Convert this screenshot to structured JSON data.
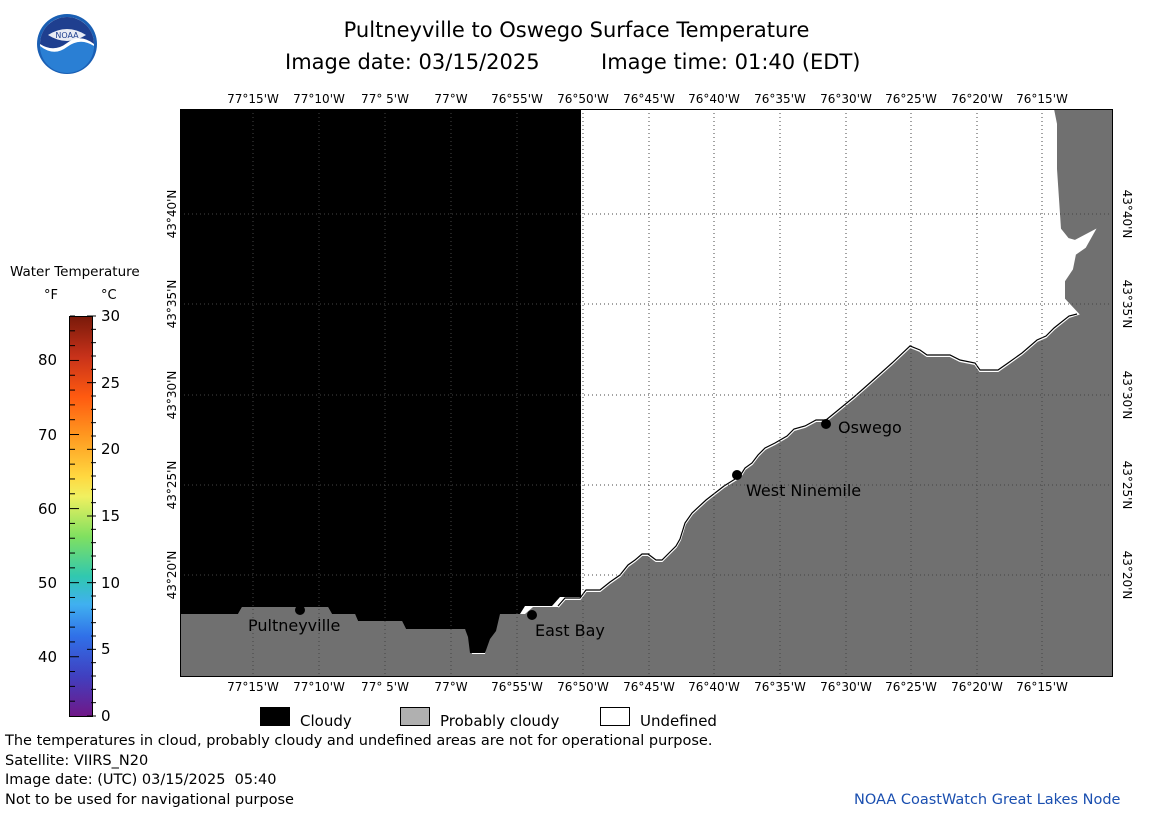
{
  "header": {
    "title": "Pultneyville to Oswego Surface Temperature",
    "date_label": "Image date: 03/15/2025",
    "time_label": "Image time: 01:40 (EDT)"
  },
  "logo": {
    "text": "NOAA",
    "icon": "noaa-logo"
  },
  "colorbar": {
    "title": "Water Temperature",
    "unit_f": "°F",
    "unit_c": "°C",
    "f_ticks": [
      "80",
      "70",
      "60",
      "50",
      "40"
    ],
    "c_ticks": [
      "30",
      "25",
      "20",
      "15",
      "10",
      "5",
      "0"
    ]
  },
  "map": {
    "lon_labels": [
      "77°15'W",
      "77°10'W",
      "77° 5'W",
      "77°W",
      "76°55'W",
      "76°50'W",
      "76°45'W",
      "76°40'W",
      "76°35'W",
      "76°30'W",
      "76°25'W",
      "76°20'W",
      "76°15'W"
    ],
    "lat_labels": [
      "43°40'N",
      "43°35'N",
      "43°30'N",
      "43°25'N",
      "43°20'N"
    ],
    "places": [
      {
        "name": "Oswego"
      },
      {
        "name": "West Ninemile"
      },
      {
        "name": "Pultneyville"
      },
      {
        "name": "East Bay"
      }
    ],
    "colors": {
      "cloudy": "#000000",
      "probably_cloudy": "#707070",
      "undefined": "#ffffff"
    }
  },
  "legend": {
    "cloudy": "Cloudy",
    "probably_cloudy": "Probably cloudy",
    "undefined": "Undefined"
  },
  "footer": {
    "disclaimer": "The temperatures in cloud, probably cloudy and undefined areas are not for operational purpose.",
    "satellite": "Satellite: VIIRS_N20",
    "utc_date": "Image date: (UTC) 03/15/2025  05:40",
    "nav_warning": "Not to be used for navigational purpose",
    "credit": "NOAA CoastWatch Great Lakes Node"
  }
}
